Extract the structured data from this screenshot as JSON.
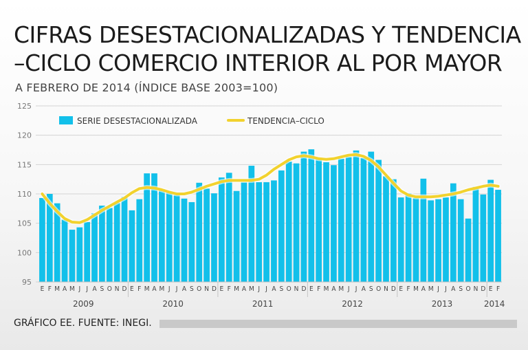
{
  "chart_data": {
    "type": "bar",
    "title": "CIFRAS DESESTACIONALIZADAS Y TENDENCIA –CICLO COMERCIO INTERIOR AL POR MAYOR",
    "subtitle": "A FEBRERO DE 2014 (ÍNDICE BASE 2003=100)",
    "ylim": [
      95,
      125
    ],
    "yticks": [
      95,
      100,
      105,
      110,
      115,
      120,
      125
    ],
    "month_labels": [
      "E",
      "F",
      "M",
      "A",
      "M",
      "J",
      "J",
      "A",
      "S",
      "O",
      "N",
      "D"
    ],
    "years": [
      "2009",
      "2010",
      "2011",
      "2012",
      "2013",
      "2014"
    ],
    "legend": {
      "bars": "SERIE DESESTACIONALIZADA",
      "line": "TENDENCIA–CICLO"
    },
    "colors": {
      "bars": "#12c0ea",
      "line": "#f2d22e"
    },
    "series": [
      {
        "name": "SERIE DESESTACIONALIZADA",
        "type": "bar",
        "values": [
          109.3,
          110.0,
          108.4,
          105.6,
          103.9,
          104.3,
          105.2,
          106.7,
          108.0,
          107.6,
          108.5,
          109.5,
          107.2,
          109.1,
          113.5,
          113.5,
          110.8,
          110.4,
          109.8,
          109.2,
          108.6,
          111.9,
          110.9,
          110.1,
          112.8,
          113.6,
          110.5,
          112.0,
          114.8,
          112.0,
          112.0,
          112.3,
          114.0,
          115.5,
          115.2,
          117.2,
          117.6,
          116.2,
          115.4,
          114.9,
          116.0,
          116.3,
          117.4,
          116.1,
          117.2,
          115.8,
          113.0,
          112.5,
          109.4,
          110.1,
          109.3,
          112.6,
          108.9,
          109.1,
          109.4,
          111.8,
          109.1,
          105.8,
          111.2,
          109.9,
          112.4,
          110.7
        ]
      },
      {
        "name": "TENDENCIA–CICLO",
        "type": "line",
        "values": [
          110.0,
          108.4,
          107.0,
          105.8,
          105.2,
          105.1,
          105.6,
          106.4,
          107.2,
          107.9,
          108.6,
          109.3,
          110.2,
          110.9,
          111.1,
          111.0,
          110.7,
          110.3,
          110.0,
          110.0,
          110.3,
          110.8,
          111.3,
          111.7,
          112.1,
          112.3,
          112.3,
          112.3,
          112.3,
          112.5,
          113.2,
          114.2,
          115.0,
          115.8,
          116.3,
          116.5,
          116.3,
          116.0,
          115.9,
          116.0,
          116.3,
          116.6,
          116.7,
          116.4,
          115.7,
          114.6,
          113.2,
          111.8,
          110.5,
          109.8,
          109.5,
          109.5,
          109.5,
          109.6,
          109.8,
          110.0,
          110.3,
          110.7,
          111.0,
          111.3,
          111.5,
          111.3
        ]
      }
    ]
  },
  "header": {
    "title": "CIFRAS DESESTACIONALIZADAS Y TENDENCIA –CICLO COMERCIO INTERIOR AL POR MAYOR",
    "subtitle": "A FEBRERO DE 2014 (ÍNDICE BASE 2003=100)"
  },
  "footer": {
    "credit": "GRÁFICO EE. FUENTE: INEGI."
  }
}
